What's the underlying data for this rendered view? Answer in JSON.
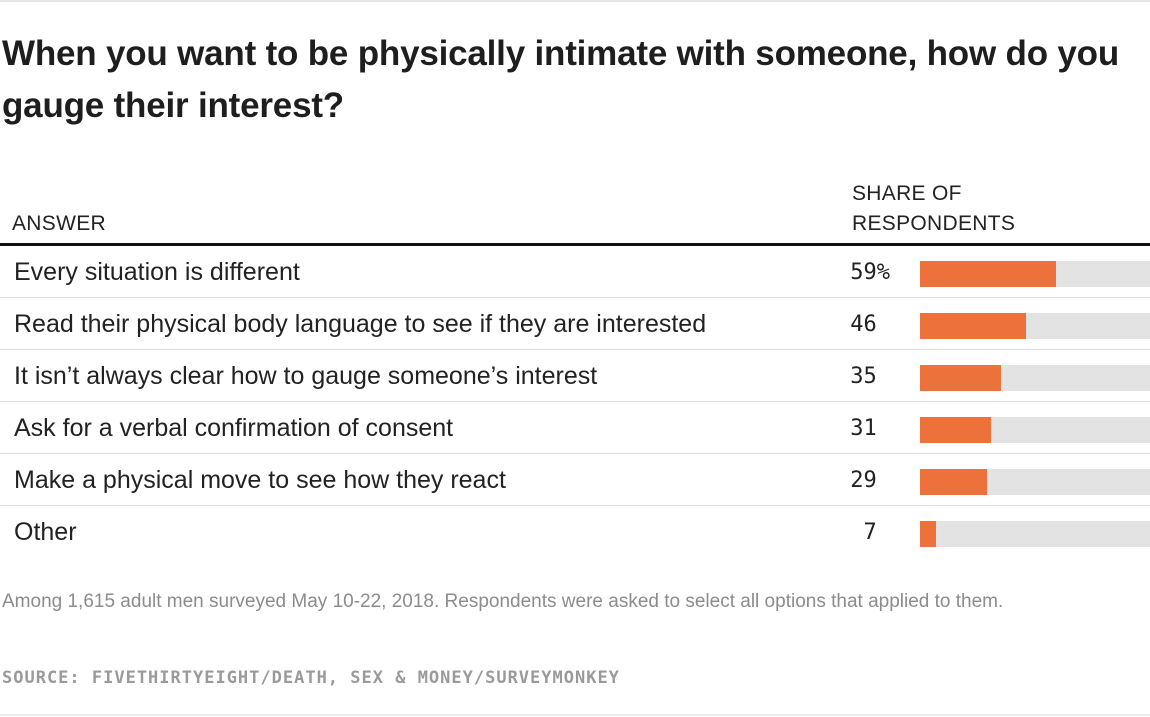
{
  "chart_data": {
    "type": "bar",
    "title": "When you want to be physically intimate with someone, how do you gauge their interest?",
    "column_headers": {
      "answer": "ANSWER",
      "share": "SHARE OF RESPONDENTS"
    },
    "categories": [
      "Every situation is different",
      "Read their physical body language to see if they are interested",
      "It isn’t always clear how to gauge someone’s interest",
      "Ask for a verbal confirmation of consent",
      "Make a physical move to see how they react",
      "Other"
    ],
    "values": [
      59,
      46,
      35,
      31,
      29,
      7
    ],
    "value_labels": [
      "59",
      "46",
      "35",
      "31",
      "29",
      "7"
    ],
    "first_value_suffix": "%",
    "xlim": [
      0,
      100
    ],
    "orientation": "horizontal",
    "bar_color": "#ed713a",
    "track_color": "#e3e3e3",
    "note": "Among 1,615 adult men surveyed May 10-22, 2018. Respondents were asked to select all options that applied to them.",
    "source": "SOURCE: FIVETHIRTYEIGHT/DEATH, SEX & MONEY/SURVEYMONKEY"
  }
}
